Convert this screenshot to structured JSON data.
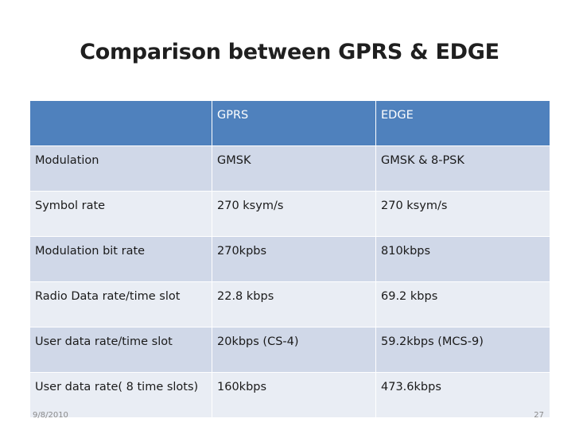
{
  "slide": {
    "title": "Comparison between GPRS & EDGE",
    "date": "9/8/2010",
    "page_number": "27"
  },
  "table": {
    "headers": [
      "",
      "GPRS",
      "EDGE"
    ],
    "rows": [
      [
        "Modulation",
        "GMSK",
        "GMSK & 8-PSK"
      ],
      [
        "Symbol rate",
        "270 ksym/s",
        "270 ksym/s"
      ],
      [
        "Modulation bit rate",
        "270kpbs",
        "810kbps"
      ],
      [
        "Radio Data rate/time slot",
        "22.8 kbps",
        "69.2 kbps"
      ],
      [
        "User data rate/time slot",
        "20kbps (CS-4)",
        "59.2kbps (MCS-9)"
      ],
      [
        "User data rate( 8 time slots)",
        "160kbps",
        "473.6kbps"
      ]
    ]
  },
  "colors": {
    "header_bg": "#4f81bd",
    "row_odd_bg": "#d0d8e8",
    "row_even_bg": "#e9edf4"
  }
}
